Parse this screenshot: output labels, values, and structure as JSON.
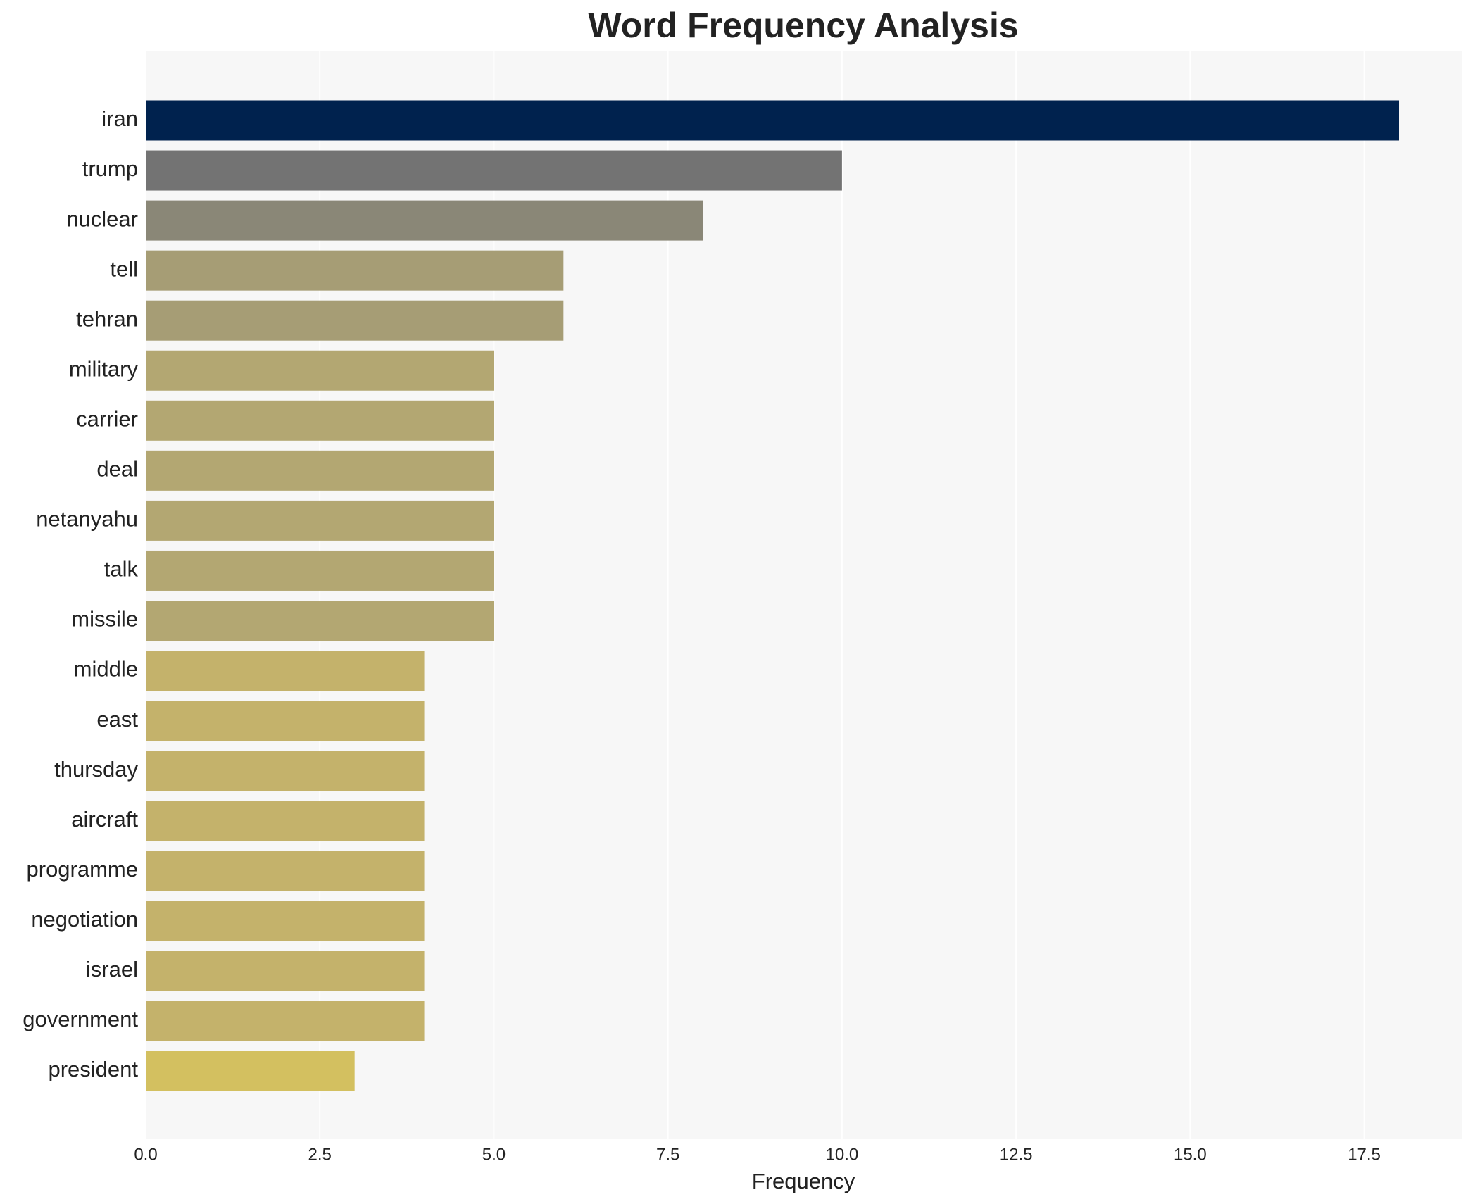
{
  "chart_data": {
    "type": "bar",
    "orientation": "horizontal",
    "title": "Word Frequency Analysis",
    "xlabel": "Frequency",
    "categories": [
      "iran",
      "trump",
      "nuclear",
      "tell",
      "tehran",
      "military",
      "carrier",
      "deal",
      "netanyahu",
      "talk",
      "missile",
      "middle",
      "east",
      "thursday",
      "aircraft",
      "programme",
      "negotiation",
      "israel",
      "government",
      "president"
    ],
    "values": [
      18,
      10,
      8,
      6,
      6,
      5,
      5,
      5,
      5,
      5,
      5,
      4,
      4,
      4,
      4,
      4,
      4,
      4,
      4,
      3
    ],
    "colors": [
      "#00224e",
      "#737373",
      "#8a8777",
      "#a69d75",
      "#a69d75",
      "#b3a772",
      "#b3a772",
      "#b3a772",
      "#b3a772",
      "#b3a772",
      "#b3a772",
      "#c4b26b",
      "#c4b26b",
      "#c4b26b",
      "#c4b26b",
      "#c4b26b",
      "#c4b26b",
      "#c4b26b",
      "#c4b26b",
      "#d3c060"
    ],
    "xlim": [
      0,
      18.9
    ],
    "xticks": [
      {
        "value": 0,
        "label": "0.0"
      },
      2.5,
      {
        "value": 5,
        "label": "5.0"
      },
      7.5,
      {
        "value": 10,
        "label": "10.0"
      },
      12.5,
      {
        "value": 15,
        "label": "15.0"
      },
      17.5
    ],
    "grid": true
  }
}
